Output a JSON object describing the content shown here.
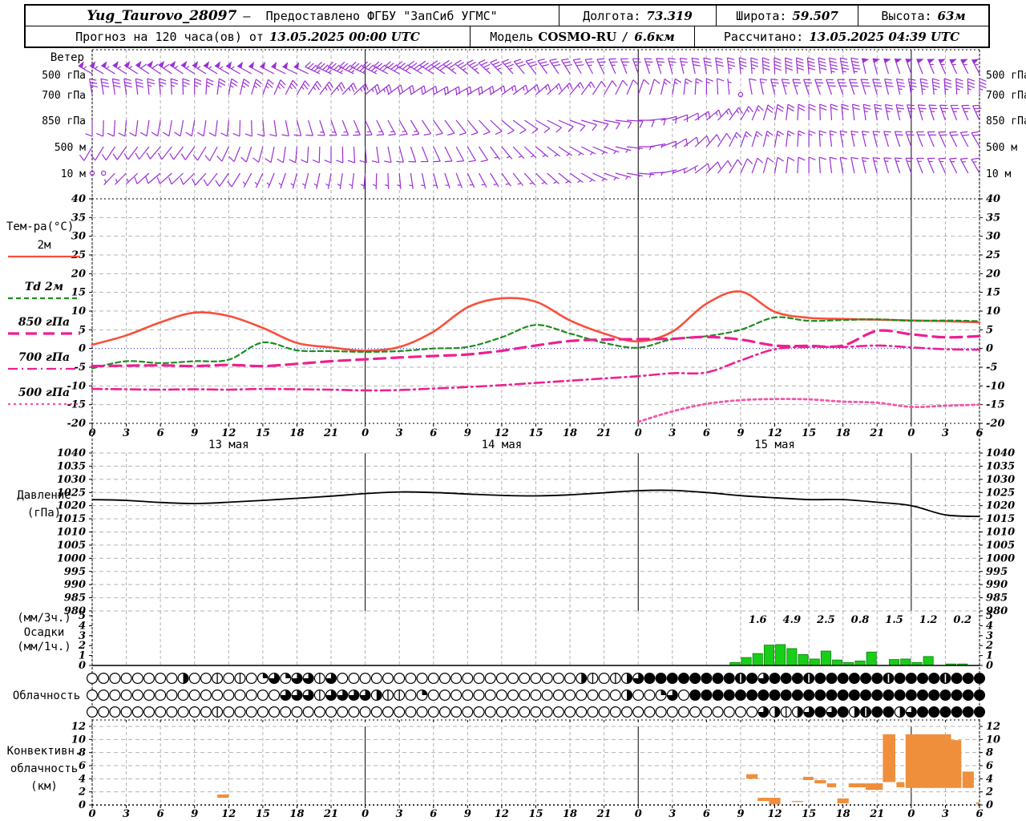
{
  "header": {
    "station": "Yug_Taurovo_28097",
    "dash": "–",
    "provider": "Предоставлено ФГБУ \"ЗапСиб УГМС\"",
    "lon_label": "Долгота:",
    "lon_value": "73.319",
    "lat_label": "Широта:",
    "lat_value": "59.507",
    "alt_label": "Высота:",
    "alt_value": "63м",
    "forecast_label": "Прогноз на 120 часа(ов) от",
    "run_time": "13.05.2025 00:00 UTC",
    "model_label": "Модель",
    "model_name": "COSMO-RU",
    "model_sep": "/",
    "model_res": "6.6км",
    "calc_label": "Рассчитано:",
    "calc_time": "13.05.2025 04:39 UTC"
  },
  "chart_data": {
    "type": "meteogram",
    "x_axis": {
      "hours_start": 0,
      "hours_end": 78,
      "tick_step": 3,
      "day_labels": [
        [
          "13 мая",
          12
        ],
        [
          "14 мая",
          36
        ],
        [
          "15 мая",
          60
        ]
      ],
      "day_boundaries": [
        24,
        48,
        72
      ]
    },
    "colors": {
      "barb": "#9B2FD6",
      "t2m": "#F8503C",
      "td2m": "#1E8C1E",
      "t850": "#EE2090",
      "t700": "#EE2090",
      "t500": "#F455A8",
      "pressure": "#000000",
      "precip": "#19CE19",
      "precip_edge": "#087F08",
      "convective": "#EF8F3C",
      "grid": "#B3B3B3",
      "zero_line": "#3333EE"
    },
    "wind": {
      "label": "Ветер",
      "levels": [
        {
          "name": "500 гПа",
          "dir": [
            300,
            302,
            304,
            303,
            300,
            298,
            296,
            295,
            296,
            298,
            302,
            308,
            315,
            322,
            328,
            334,
            340,
            345,
            350,
            355,
            358,
            355,
            350,
            345,
            340,
            335,
            332
          ],
          "spd": [
            55,
            55,
            60,
            55,
            55,
            50,
            50,
            45,
            45,
            40,
            40,
            35,
            35,
            30,
            30,
            25,
            25,
            25,
            30,
            35,
            40,
            40,
            45,
            50,
            50,
            55,
            55
          ]
        },
        {
          "name": "700 гПа",
          "dir": [
            350,
            352,
            355,
            360,
            370,
            380,
            390,
            400,
            410,
            415,
            420,
            420,
            415,
            410,
            400,
            390,
            380,
            370,
            360,
            352,
            346,
            341,
            340,
            344,
            350,
            356,
            360
          ],
          "spd": [
            30,
            30,
            25,
            25,
            25,
            25,
            25,
            25,
            25,
            20,
            20,
            20,
            15,
            15,
            15,
            10,
            10,
            15,
            15,
            2,
            25,
            25,
            30,
            30,
            35,
            35,
            35
          ]
        },
        {
          "name": "850 гПа",
          "dir": [
            180,
            185,
            190,
            190,
            185,
            175,
            165,
            160,
            155,
            150,
            145,
            140,
            130,
            120,
            110,
            100,
            90,
            70,
            50,
            30,
            10,
            0,
            -5,
            -10,
            -15,
            -20,
            -25
          ],
          "spd": [
            10,
            10,
            10,
            10,
            10,
            10,
            10,
            15,
            15,
            15,
            10,
            10,
            10,
            10,
            10,
            10,
            10,
            10,
            15,
            15,
            20,
            20,
            20,
            25,
            25,
            25,
            25
          ]
        },
        {
          "name": "500 м",
          "dir": [
            210,
            215,
            220,
            215,
            205,
            195,
            185,
            180,
            175,
            165,
            155,
            150,
            140,
            130,
            120,
            110,
            90,
            60,
            40,
            20,
            10,
            0,
            -10,
            -15,
            -20,
            -25,
            -30
          ],
          "spd": [
            10,
            10,
            10,
            10,
            10,
            10,
            10,
            10,
            10,
            10,
            10,
            10,
            5,
            5,
            5,
            5,
            5,
            10,
            10,
            15,
            15,
            15,
            15,
            15,
            20,
            20,
            20
          ]
        },
        {
          "name": "10 м",
          "dir": [
            220,
            225,
            230,
            225,
            215,
            205,
            195,
            190,
            185,
            175,
            165,
            155,
            145,
            135,
            125,
            110,
            95,
            70,
            45,
            25,
            10,
            0,
            -10,
            -15,
            -20,
            -25,
            -30
          ],
          "spd": [
            2,
            5,
            10,
            10,
            10,
            5,
            5,
            5,
            5,
            5,
            5,
            5,
            5,
            5,
            5,
            5,
            5,
            5,
            10,
            10,
            10,
            10,
            10,
            15,
            15,
            15,
            15
          ]
        }
      ]
    },
    "temperature": {
      "label": "Тем-ра(°C)",
      "ylim": [
        -20,
        40
      ],
      "step": 5,
      "zero_line": true,
      "legend": [
        {
          "label": "2м",
          "style": "solid",
          "color": "#F8503C"
        },
        {
          "label": "Td  2м",
          "style": "dashed",
          "color": "#1E8C1E"
        },
        {
          "label": "850 гПа",
          "style": "longdash",
          "color": "#EE2090"
        },
        {
          "label": "700 гПа",
          "style": "dashdot",
          "color": "#EE2090"
        },
        {
          "label": "500 гПа",
          "style": "dotted",
          "color": "#F455A8"
        }
      ],
      "series": [
        {
          "name": "2м",
          "style": "solid",
          "color": "#F8503C",
          "width": 2.6,
          "values": [
            1.0,
            3.5,
            7.0,
            9.6,
            8.7,
            5.5,
            1.5,
            0.3,
            -0.6,
            0.4,
            4.5,
            11.0,
            13.4,
            12.5,
            7.5,
            4.0,
            1.9,
            4.5,
            12.0,
            15.2,
            9.8,
            8.2,
            7.9,
            7.7,
            7.5,
            7.3,
            7.0
          ]
        },
        {
          "name": "Td 2м",
          "style": "dashed",
          "color": "#1E8C1E",
          "width": 2.2,
          "values": [
            -5.3,
            -3.4,
            -3.9,
            -3.4,
            -3.0,
            1.6,
            -0.5,
            -0.7,
            -0.9,
            -0.7,
            0.0,
            0.4,
            3.0,
            6.3,
            4.0,
            1.5,
            0.2,
            2.5,
            3.3,
            5.0,
            8.3,
            7.4,
            7.6,
            7.8,
            7.4,
            7.5,
            7.3
          ]
        },
        {
          "name": "850 гПа",
          "style": "longdash",
          "color": "#EE2090",
          "width": 3.2,
          "values": [
            -4.7,
            -4.6,
            -4.5,
            -4.7,
            -4.4,
            -4.7,
            -4.1,
            -3.4,
            -2.9,
            -2.4,
            -2.0,
            -1.6,
            -0.6,
            0.8,
            2.0,
            2.4,
            2.5,
            2.6,
            3.1,
            2.4,
            0.8,
            0.7,
            0.8,
            4.7,
            3.8,
            3.0,
            3.3
          ]
        },
        {
          "name": "700 гПа",
          "style": "dashdot",
          "color": "#EE2090",
          "width": 2.6,
          "values": [
            -10.8,
            -10.9,
            -11.0,
            -10.9,
            -11.0,
            -10.8,
            -10.9,
            -11.0,
            -11.2,
            -11.1,
            -10.7,
            -10.3,
            -9.8,
            -9.2,
            -8.6,
            -8.0,
            -7.4,
            -6.6,
            -6.4,
            -3.2,
            -0.2,
            0.4,
            0.4,
            0.8,
            0.3,
            -0.2,
            -0.3
          ]
        },
        {
          "name": "500 гПа",
          "style": "dotted",
          "color": "#F455A8",
          "width": 2.8,
          "values": [
            null,
            null,
            null,
            null,
            null,
            null,
            null,
            null,
            null,
            null,
            null,
            null,
            null,
            null,
            null,
            null,
            -19.6,
            -16.8,
            -14.8,
            -13.8,
            -13.5,
            -13.6,
            -14.2,
            -14.5,
            -15.6,
            -15.3,
            -15.0
          ]
        }
      ]
    },
    "pressure": {
      "label1": "Давление",
      "label2": "(гПа)",
      "ylim": [
        980,
        1040
      ],
      "step": 5,
      "values": [
        1022.3,
        1022.0,
        1021.2,
        1020.8,
        1021.3,
        1022.0,
        1022.8,
        1023.6,
        1024.6,
        1025.2,
        1025.0,
        1024.4,
        1023.9,
        1023.7,
        1024.1,
        1024.9,
        1025.7,
        1025.8,
        1025.0,
        1023.8,
        1023.0,
        1022.3,
        1022.3,
        1021.3,
        1020.0,
        1016.5,
        1015.9
      ]
    },
    "precipitation": {
      "label1": "(мм/3ч.)",
      "label2": "Осадки",
      "label3": "(мм/1ч.)",
      "ylim": [
        0,
        5
      ],
      "step": 1,
      "sums_3h": [
        [
          57,
          "1.6"
        ],
        [
          60,
          "4.9"
        ],
        [
          63,
          "2.5"
        ],
        [
          66,
          "0.8"
        ],
        [
          69,
          "1.5"
        ],
        [
          72,
          "1.2"
        ],
        [
          75,
          "0.2"
        ]
      ],
      "hourly_bars": [
        [
          56,
          0.3
        ],
        [
          57,
          0.8
        ],
        [
          58,
          1.2
        ],
        [
          59,
          2.05
        ],
        [
          60,
          2.1
        ],
        [
          61,
          1.7
        ],
        [
          62,
          1.1
        ],
        [
          63,
          0.65
        ],
        [
          64,
          1.45
        ],
        [
          65,
          0.55
        ],
        [
          66,
          0.3
        ],
        [
          67,
          0.45
        ],
        [
          68,
          1.35
        ],
        [
          70,
          0.6
        ],
        [
          71,
          0.65
        ],
        [
          72,
          0.3
        ],
        [
          73,
          0.9
        ],
        [
          75,
          0.15
        ],
        [
          76,
          0.15
        ]
      ]
    },
    "cloudiness": {
      "label": "Облачность",
      "rows_okta": [
        [
          0,
          0,
          0,
          0,
          0,
          0,
          0,
          0,
          4,
          0,
          0,
          1,
          0,
          1,
          0,
          2,
          6,
          2,
          6,
          6,
          1,
          6,
          0,
          0,
          0,
          0,
          0,
          0,
          0,
          0,
          0,
          0,
          0,
          0,
          0,
          0,
          0,
          0,
          0,
          0,
          0,
          0,
          0,
          4,
          1,
          0,
          1,
          4,
          6,
          8,
          8,
          8,
          8,
          8,
          8,
          8,
          8,
          7,
          8,
          6,
          8,
          8,
          8,
          7,
          8,
          8,
          8,
          8,
          8,
          8,
          7,
          8,
          8,
          8,
          8,
          7,
          8,
          8,
          8
        ],
        [
          0,
          0,
          0,
          0,
          0,
          0,
          0,
          0,
          0,
          0,
          0,
          0,
          0,
          0,
          0,
          0,
          0,
          6,
          6,
          6,
          1,
          6,
          6,
          6,
          6,
          4,
          1,
          1,
          0,
          2,
          0,
          0,
          0,
          0,
          0,
          0,
          0,
          0,
          0,
          0,
          0,
          0,
          0,
          0,
          0,
          0,
          0,
          4,
          0,
          0,
          2,
          6,
          0,
          8,
          8,
          8,
          8,
          8,
          8,
          8,
          8,
          8,
          8,
          8,
          8,
          8,
          8,
          8,
          8,
          8,
          8,
          8,
          8,
          8,
          8,
          8,
          8,
          8,
          8
        ],
        [
          0,
          0,
          0,
          0,
          0,
          0,
          0,
          0,
          0,
          0,
          0,
          1,
          0,
          0,
          0,
          0,
          0,
          0,
          0,
          0,
          0,
          0,
          0,
          0,
          0,
          0,
          0,
          0,
          0,
          0,
          0,
          0,
          0,
          0,
          0,
          0,
          0,
          0,
          0,
          0,
          0,
          0,
          0,
          0,
          0,
          0,
          0,
          0,
          0,
          0,
          0,
          0,
          0,
          0,
          0,
          0,
          0,
          0,
          0,
          6,
          4,
          1,
          4,
          6,
          8,
          6,
          8,
          4,
          7,
          8,
          8,
          4,
          6,
          8,
          8,
          8,
          8,
          8,
          8
        ]
      ]
    },
    "convective": {
      "label1": "Конвективн.",
      "label2": "облачность",
      "label3": "(км)",
      "ylim": [
        0,
        12
      ],
      "step": 2,
      "bars": [
        [
          11,
          12,
          1.1,
          1.6
        ],
        [
          57.5,
          58.5,
          4.0,
          4.7
        ],
        [
          58.5,
          59.5,
          0.6,
          1.1
        ],
        [
          59.5,
          60.5,
          0.1,
          1.1
        ],
        [
          61.5,
          62.5,
          0.45,
          0.6
        ],
        [
          62.5,
          63.4,
          3.8,
          4.3
        ],
        [
          63.5,
          64.5,
          3.3,
          3.8
        ],
        [
          64.6,
          65.4,
          2.7,
          3.3
        ],
        [
          65.5,
          66.5,
          0.25,
          1.0
        ],
        [
          66.5,
          68.0,
          2.7,
          3.3
        ],
        [
          68.0,
          69.5,
          2.3,
          3.3
        ],
        [
          69.5,
          70.6,
          3.5,
          10.8
        ],
        [
          70.7,
          71.4,
          2.7,
          3.5
        ],
        [
          71.5,
          75.5,
          2.6,
          10.8
        ],
        [
          75.5,
          76.4,
          2.6,
          9.9
        ],
        [
          76.5,
          77.5,
          2.6,
          5.1
        ],
        [
          77.7,
          78.0,
          0.1,
          0.4
        ]
      ]
    }
  }
}
